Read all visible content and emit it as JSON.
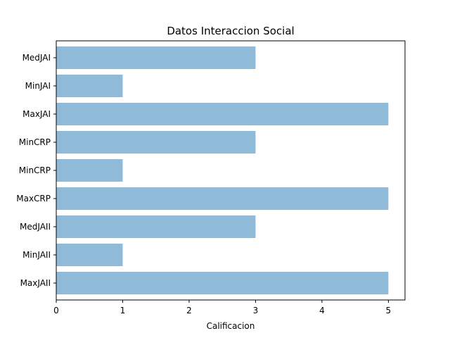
{
  "chart_data": {
    "type": "bar",
    "orientation": "horizontal",
    "title": "Datos Interaccion Social",
    "xlabel": "Calificacion",
    "ylabel": "",
    "categories": [
      "MedJAI",
      "MinJAI",
      "MaxJAI",
      "MinCRP",
      "MinCRP",
      "MaxCRP",
      "MedJAII",
      "MinJAII",
      "MaxJAII"
    ],
    "values": [
      3,
      1,
      5,
      3,
      1,
      5,
      3,
      1,
      5
    ],
    "xlim": [
      0,
      5.25
    ],
    "xticks": [
      0,
      1,
      2,
      3,
      4,
      5
    ],
    "grid": false,
    "bar_color": "#8fbbd9"
  }
}
